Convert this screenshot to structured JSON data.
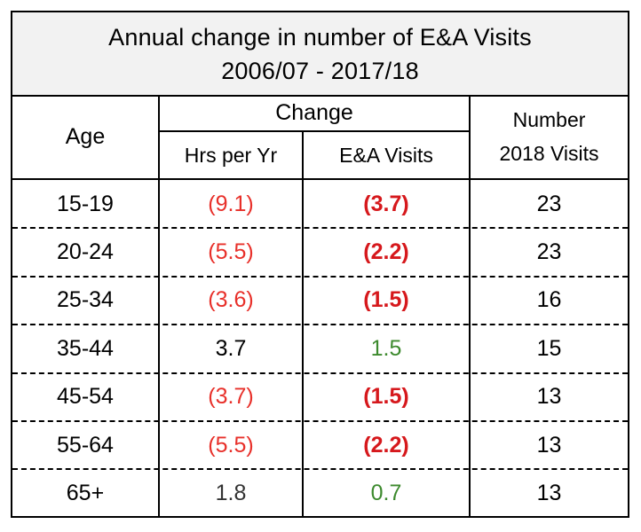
{
  "chart_data": {
    "type": "table",
    "title_line1": "Annual change in number of E&A Visits",
    "title_line2": "2006/07 - 2017/18",
    "headers": {
      "age": "Age",
      "change": "Change",
      "hrs_per_yr": "Hrs per Yr",
      "ea_visits": "E&A Visits",
      "number_line1": "Number",
      "number_line2": "2018 Visits"
    },
    "rows": [
      {
        "age": "15-19",
        "hrs": "(9.1)",
        "ea": "(3.7)",
        "visits": "23"
      },
      {
        "age": "20-24",
        "hrs": "(5.5)",
        "ea": "(2.2)",
        "visits": "23"
      },
      {
        "age": "25-34",
        "hrs": "(3.6)",
        "ea": "(1.5)",
        "visits": "16"
      },
      {
        "age": "35-44",
        "hrs": "3.7",
        "ea": "1.5",
        "visits": "15"
      },
      {
        "age": "45-54",
        "hrs": "(3.7)",
        "ea": "(1.5)",
        "visits": "13"
      },
      {
        "age": "55-64",
        "hrs": "(5.5)",
        "ea": "(2.2)",
        "visits": "13"
      },
      {
        "age": "65+",
        "hrs": "1.8",
        "ea": "0.7",
        "visits": "13"
      }
    ],
    "colors": {
      "negative": "#e8302a",
      "negative_bold": "#d6181c",
      "positive": "#3d8a2e",
      "title_bg": "#f2f2f2"
    }
  }
}
